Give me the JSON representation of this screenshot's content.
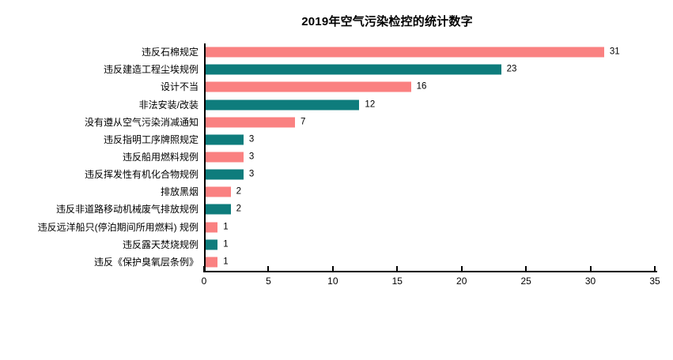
{
  "chart_data": {
    "type": "bar",
    "orientation": "horizontal",
    "title": "2019年空气污染检控的统计数字",
    "categories": [
      "违反石棉规定",
      "违反建造工程尘埃规例",
      "设计不当",
      "非法安装/改装",
      "没有遵从空气污染消减通知",
      "违反指明工序牌照规定",
      "违反船用燃料规例",
      "违反挥发性有机化合物规例",
      "排放黑烟",
      "违反非道路移动机械废气排放规例",
      "违反远洋船只(停泊期间所用燃料) 规例",
      "违反露天焚烧规例",
      "违反《保护臭氧层条例》"
    ],
    "values": [
      31,
      23,
      16,
      12,
      7,
      3,
      3,
      3,
      2,
      2,
      1,
      1,
      1
    ],
    "bar_colors_alternating": [
      "#fa8181",
      "#0e7c7c"
    ],
    "xlabel": "",
    "ylabel": "",
    "xlim": [
      0,
      35
    ],
    "x_ticks": [
      0,
      5,
      10,
      15,
      20,
      25,
      30,
      35
    ],
    "grid": false,
    "legend": "none",
    "value_labels_shown": true,
    "axis_color": "#000000",
    "background_color": "#ffffff"
  }
}
